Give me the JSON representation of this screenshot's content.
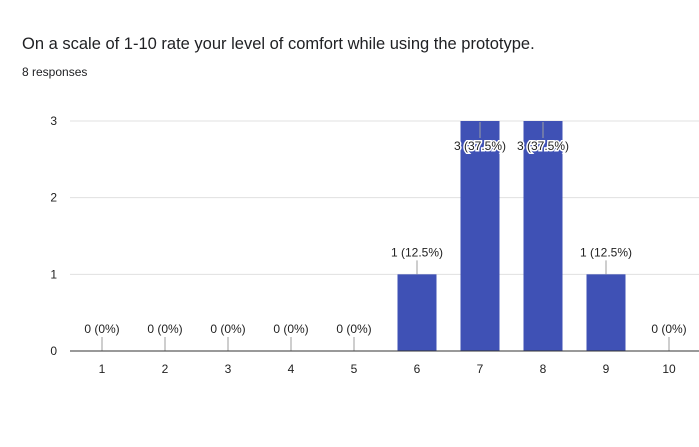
{
  "header": {
    "title": "On a scale of 1-10 rate your level of comfort while using the prototype.",
    "responses": "8 responses"
  },
  "chart_data": {
    "type": "bar",
    "title": "On a scale of 1-10 rate your level of comfort while using the prototype.",
    "categories": [
      "1",
      "2",
      "3",
      "4",
      "5",
      "6",
      "7",
      "8",
      "9",
      "10"
    ],
    "values": [
      0,
      0,
      0,
      0,
      0,
      1,
      3,
      3,
      1,
      0
    ],
    "data_labels": [
      "0 (0%)",
      "0 (0%)",
      "0 (0%)",
      "0 (0%)",
      "0 (0%)",
      "1 (12.5%)",
      "3 (37.5%)",
      "3 (37.5%)",
      "1 (12.5%)",
      "0 (0%)"
    ],
    "y_ticks": [
      "0",
      "1",
      "2",
      "3"
    ],
    "ylim": [
      0,
      3
    ],
    "xlabel": "",
    "ylabel": "",
    "grid": true,
    "legend": "none",
    "bar_color": "#3f51b5"
  }
}
